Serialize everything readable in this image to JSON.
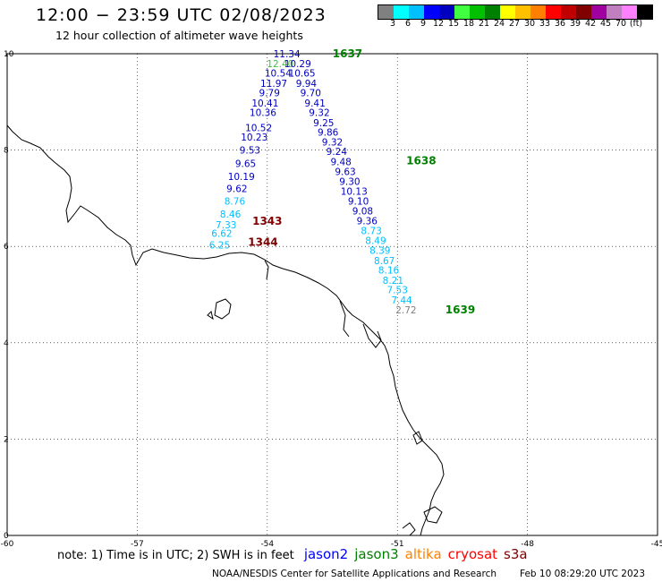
{
  "header": {
    "title": "12:00 − 23:59 UTC 02/08/2023",
    "subtitle": "12 hour collection of altimeter wave heights"
  },
  "legend": {
    "colors": [
      "#808080",
      "#00ffff",
      "#00c0ff",
      "#0000ff",
      "#0000c0",
      "#40ff40",
      "#00c000",
      "#008000",
      "#ffff00",
      "#ffc000",
      "#ff8000",
      "#ff0000",
      "#c00000",
      "#800000",
      "#a000a0",
      "#c080c0",
      "#ff80ff",
      "#000000"
    ],
    "labels": [
      "3",
      "6",
      "9",
      "12",
      "15",
      "18",
      "21",
      "24",
      "27",
      "30",
      "33",
      "36",
      "39",
      "42",
      "45",
      "70",
      "(ft)"
    ]
  },
  "chart_data": {
    "type": "map",
    "lon_range": [
      -60,
      -45
    ],
    "lat_range": [
      0,
      10
    ],
    "x_ticks": [
      "-60",
      "-57",
      "-54",
      "-51",
      "-48",
      "-45"
    ],
    "y_ticks": [
      "10",
      "8",
      "6",
      "4",
      "2",
      "0"
    ],
    "grid": true,
    "track_1637": [
      {
        "lon": -53.55,
        "lat": 10.0,
        "v": "11.34",
        "c": "#0000c0"
      },
      {
        "lon": -53.7,
        "lat": 9.8,
        "v": "12.40",
        "c": "#40c040"
      },
      {
        "lon": -53.3,
        "lat": 9.8,
        "v": "10.29",
        "c": "#0000c0"
      },
      {
        "lon": -53.75,
        "lat": 9.6,
        "v": "10.54",
        "c": "#0000c0"
      },
      {
        "lon": -53.2,
        "lat": 9.6,
        "v": "10.65",
        "c": "#0000c0"
      },
      {
        "lon": -53.85,
        "lat": 9.39,
        "v": "11.97",
        "c": "#0000c0"
      },
      {
        "lon": -53.1,
        "lat": 9.39,
        "v": "9.94",
        "c": "#0000c0"
      },
      {
        "lon": -53.95,
        "lat": 9.19,
        "v": "9.79",
        "c": "#0000c0"
      },
      {
        "lon": -53.0,
        "lat": 9.19,
        "v": "9.70",
        "c": "#0000c0"
      },
      {
        "lon": -54.05,
        "lat": 8.98,
        "v": "10.41",
        "c": "#0000c0"
      },
      {
        "lon": -52.9,
        "lat": 8.98,
        "v": "9.41",
        "c": "#0000c0"
      },
      {
        "lon": -54.1,
        "lat": 8.78,
        "v": "10.36",
        "c": "#0000c0"
      },
      {
        "lon": -52.8,
        "lat": 8.78,
        "v": "9.32",
        "c": "#0000c0"
      },
      {
        "lon": -52.7,
        "lat": 8.57,
        "v": "9.25",
        "c": "#0000c0"
      },
      {
        "lon": -54.2,
        "lat": 8.47,
        "v": "10.52",
        "c": "#0000c0"
      },
      {
        "lon": -52.6,
        "lat": 8.37,
        "v": "9.86",
        "c": "#0000c0"
      },
      {
        "lon": -54.3,
        "lat": 8.27,
        "v": "10.23",
        "c": "#0000c0"
      },
      {
        "lon": -52.5,
        "lat": 8.17,
        "v": "9.32",
        "c": "#0000c0"
      },
      {
        "lon": -54.4,
        "lat": 8.0,
        "v": "9.53",
        "c": "#0000c0"
      },
      {
        "lon": -52.4,
        "lat": 7.97,
        "v": "9.24",
        "c": "#0000c0"
      }
    ],
    "track_1638": [
      {
        "lon": -52.3,
        "lat": 7.76,
        "v": "9.48",
        "c": "#0000c0"
      },
      {
        "lon": -54.5,
        "lat": 7.72,
        "v": "9.65",
        "c": "#0000c0"
      },
      {
        "lon": -52.2,
        "lat": 7.56,
        "v": "9.63",
        "c": "#0000c0"
      },
      {
        "lon": -54.6,
        "lat": 7.45,
        "v": "10.19",
        "c": "#0000c0"
      },
      {
        "lon": -52.1,
        "lat": 7.35,
        "v": "9.30",
        "c": "#0000c0"
      },
      {
        "lon": -54.7,
        "lat": 7.2,
        "v": "9.62",
        "c": "#0000c0"
      },
      {
        "lon": -52.0,
        "lat": 7.15,
        "v": "10.13",
        "c": "#0000c0"
      },
      {
        "lon": -54.75,
        "lat": 6.94,
        "v": "8.76",
        "c": "#00c0ff"
      },
      {
        "lon": -51.9,
        "lat": 6.94,
        "v": "9.10",
        "c": "#0000c0"
      },
      {
        "lon": -51.8,
        "lat": 6.74,
        "v": "9.08",
        "c": "#0000c0"
      },
      {
        "lon": -54.85,
        "lat": 6.67,
        "v": "8.46",
        "c": "#00c0ff"
      },
      {
        "lon": -51.7,
        "lat": 6.53,
        "v": "9.36",
        "c": "#0000c0"
      },
      {
        "lon": -54.95,
        "lat": 6.45,
        "v": "7.33",
        "c": "#00c0ff"
      },
      {
        "lon": -51.6,
        "lat": 6.33,
        "v": "8.73",
        "c": "#00c0ff"
      },
      {
        "lon": -55.05,
        "lat": 6.27,
        "v": "6.62",
        "c": "#00c0ff"
      },
      {
        "lon": -51.5,
        "lat": 6.12,
        "v": "8.49",
        "c": "#00c0ff"
      },
      {
        "lon": -55.1,
        "lat": 6.03,
        "v": "6.25",
        "c": "#00c0ff"
      },
      {
        "lon": -51.4,
        "lat": 5.92,
        "v": "8.39",
        "c": "#00c0ff"
      },
      {
        "lon": -51.3,
        "lat": 5.71,
        "v": "8.67",
        "c": "#00c0ff"
      },
      {
        "lon": -51.2,
        "lat": 5.51,
        "v": "8.16",
        "c": "#00c0ff"
      },
      {
        "lon": -51.1,
        "lat": 5.3,
        "v": "8.21",
        "c": "#00c0ff"
      },
      {
        "lon": -51.0,
        "lat": 5.1,
        "v": "7.53",
        "c": "#00c0ff"
      },
      {
        "lon": -50.9,
        "lat": 4.89,
        "v": "7.44",
        "c": "#00c0ff"
      },
      {
        "lon": -50.8,
        "lat": 4.68,
        "v": "2.72",
        "c": "#808080"
      }
    ],
    "pass_labels": [
      {
        "lon": -52.15,
        "lat": 10.0,
        "text": "1637",
        "c": "#008000"
      },
      {
        "lon": -50.45,
        "lat": 7.78,
        "text": "1638",
        "c": "#008000"
      },
      {
        "lon": -49.55,
        "lat": 4.68,
        "text": "1639",
        "c": "#008000"
      },
      {
        "lon": -54.0,
        "lat": 6.52,
        "text": "1343",
        "c": "#800000"
      },
      {
        "lon": -54.1,
        "lat": 6.09,
        "text": "1344",
        "c": "#800000"
      }
    ]
  },
  "footer": {
    "note": "note:  1) Time is in UTC;  2) SWH is in feet",
    "satellites": [
      {
        "name": "jason2",
        "color": "#0000ff"
      },
      {
        "name": "jason3",
        "color": "#008000"
      },
      {
        "name": "altika",
        "color": "#ff8000"
      },
      {
        "name": "cryosat",
        "color": "#ff0000"
      },
      {
        "name": "s3a",
        "color": "#800000"
      }
    ],
    "credit": "NOAA/NESDIS Center for Satellite Applications and Research",
    "timestamp": "Feb 10 08:29:20 UTC 2023"
  }
}
